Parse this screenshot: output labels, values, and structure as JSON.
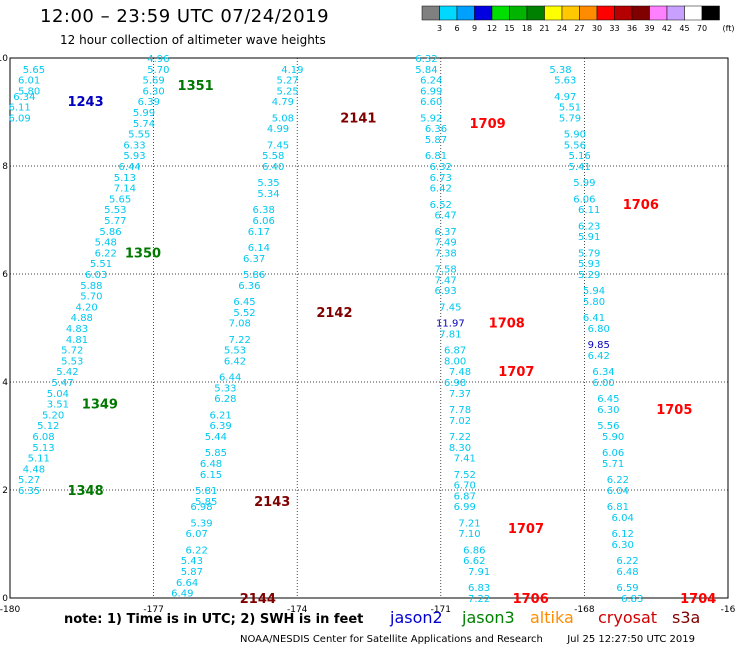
{
  "header": {
    "title": "12:00 – 23:59 UTC 07/24/2019",
    "subtitle": "12 hour collection of altimeter wave heights"
  },
  "colorbar": {
    "unit": "(ft)",
    "labels": [
      "3",
      "6",
      "9",
      "12",
      "15",
      "18",
      "21",
      "24",
      "27",
      "30",
      "33",
      "36",
      "39",
      "42",
      "45",
      "70"
    ],
    "colors": [
      "#808080",
      "#00d8ff",
      "#00a0ff",
      "#0000e0",
      "#00e000",
      "#00b400",
      "#008000",
      "#ffff00",
      "#ffc800",
      "#ff8c00",
      "#ff0000",
      "#b40000",
      "#800000",
      "#ff80ff",
      "#c8a0ff",
      "#ffffff",
      "#000000"
    ]
  },
  "chart_data": {
    "type": "scatter",
    "xlim": [
      -180,
      -165
    ],
    "ylim": [
      0,
      10
    ],
    "x_ticks": [
      "-180",
      "-177",
      "-174",
      "-171",
      "-168",
      "-16"
    ],
    "y_ticks": [
      "0",
      "2",
      "4",
      "6",
      "8",
      "10"
    ],
    "grid": true,
    "tracks": [
      {
        "label": "1243",
        "satellite": "jason2",
        "label_at": [
          -178.8,
          9.2
        ],
        "points": [
          [
            -179.5,
            9.8,
            "5.65"
          ],
          [
            -179.6,
            9.6,
            "6.01"
          ],
          [
            -179.6,
            9.4,
            "5.80"
          ],
          [
            -179.7,
            9.3,
            "6.34"
          ],
          [
            -179.8,
            9.1,
            "6.11"
          ],
          [
            -179.8,
            8.9,
            "6.09"
          ]
        ]
      },
      {
        "label": "1351",
        "satellite": "jason3",
        "label_at": [
          -176.5,
          9.5
        ],
        "points": [
          [
            -176.9,
            10.0,
            "4.96"
          ],
          [
            -176.9,
            9.8,
            "5.70"
          ],
          [
            -177.0,
            9.6,
            "5.69"
          ],
          [
            -177.0,
            9.4,
            "6.30"
          ],
          [
            -177.1,
            9.2,
            "6.39"
          ],
          [
            -177.2,
            9.0,
            "5.99"
          ],
          [
            -177.2,
            8.8,
            "5.74"
          ],
          [
            -177.3,
            8.6,
            "5.55"
          ],
          [
            -177.4,
            8.4,
            "6.33"
          ],
          [
            -177.4,
            8.2,
            "5.93"
          ],
          [
            -177.5,
            8.0,
            "6.44"
          ],
          [
            -177.6,
            7.8,
            "5.13"
          ],
          [
            -177.6,
            7.6,
            "7.14"
          ],
          [
            -177.7,
            7.4,
            "5.65"
          ],
          [
            -177.8,
            7.2,
            "5.53"
          ],
          [
            -177.8,
            7.0,
            "5.77"
          ],
          [
            -177.9,
            6.8,
            "5.86"
          ],
          [
            -178.0,
            6.6,
            "5.48"
          ],
          [
            -178.0,
            6.4,
            "6.22"
          ],
          [
            -178.1,
            6.2,
            "5.51"
          ],
          [
            -178.2,
            6.0,
            "6.03"
          ]
        ]
      },
      {
        "label": "1350",
        "satellite": "jason3",
        "label_at": [
          -177.6,
          6.4
        ],
        "points": [
          [
            -178.3,
            5.8,
            "5.88"
          ],
          [
            -178.3,
            5.6,
            "5.70"
          ],
          [
            -178.4,
            5.4,
            "4.20"
          ],
          [
            -178.5,
            5.2,
            "4.88"
          ],
          [
            -178.6,
            5.0,
            "4.83"
          ],
          [
            -178.6,
            4.8,
            "4.81"
          ],
          [
            -178.7,
            4.6,
            "5.72"
          ],
          [
            -178.7,
            4.4,
            "5.53"
          ],
          [
            -178.8,
            4.2,
            "5.42"
          ],
          [
            -178.9,
            4.0,
            "5.47"
          ]
        ]
      },
      {
        "label": "1349",
        "satellite": "jason3",
        "label_at": [
          -178.5,
          3.6
        ],
        "points": [
          [
            -179.0,
            3.8,
            "5.04"
          ],
          [
            -179.0,
            3.6,
            "3.51"
          ],
          [
            -179.1,
            3.4,
            "5.20"
          ],
          [
            -179.2,
            3.2,
            "5.12"
          ],
          [
            -179.3,
            3.0,
            "6.08"
          ],
          [
            -179.3,
            2.8,
            "5.13"
          ],
          [
            -179.4,
            2.6,
            "5.11"
          ],
          [
            -179.5,
            2.4,
            "4.48"
          ],
          [
            -179.6,
            2.2,
            "5.27"
          ]
        ]
      },
      {
        "label": "1348",
        "satellite": "jason3",
        "label_at": [
          -178.8,
          2.0
        ],
        "points": [
          [
            -179.6,
            2.0,
            "6.35"
          ]
        ]
      },
      {
        "label": "2141",
        "satellite": "cryosat",
        "label_at": [
          -173.1,
          8.9
        ],
        "points": [
          [
            -174.1,
            9.8,
            "4.19"
          ],
          [
            -174.2,
            9.6,
            "5.27"
          ],
          [
            -174.2,
            9.4,
            "5.25"
          ],
          [
            -174.3,
            9.2,
            "4.79"
          ],
          [
            -174.3,
            8.9,
            "5.08"
          ],
          [
            -174.4,
            8.7,
            "4.99"
          ],
          [
            -174.4,
            8.4,
            "7.45"
          ],
          [
            -174.5,
            8.2,
            "5.58"
          ],
          [
            -174.5,
            8.0,
            "6.40"
          ],
          [
            -174.6,
            7.7,
            "5.35"
          ],
          [
            -174.6,
            7.5,
            "5.34"
          ],
          [
            -174.7,
            7.2,
            "6.38"
          ],
          [
            -174.7,
            7.0,
            "6.06"
          ],
          [
            -174.8,
            6.8,
            "6.17"
          ],
          [
            -174.8,
            6.5,
            "6.14"
          ],
          [
            -174.9,
            6.3,
            "6.37"
          ],
          [
            -174.9,
            6.0,
            "5.86"
          ]
        ]
      },
      {
        "label": "2142",
        "satellite": "cryosat",
        "label_at": [
          -173.6,
          5.3
        ],
        "points": [
          [
            -175.0,
            5.8,
            "6.36"
          ],
          [
            -175.1,
            5.5,
            "6.45"
          ],
          [
            -175.1,
            5.3,
            "5.52"
          ],
          [
            -175.2,
            5.1,
            "7.08"
          ],
          [
            -175.2,
            4.8,
            "7.22"
          ],
          [
            -175.3,
            4.6,
            "5.53"
          ],
          [
            -175.3,
            4.4,
            "6.42"
          ],
          [
            -175.4,
            4.1,
            "6.44"
          ],
          [
            -175.5,
            3.9,
            "5.33"
          ],
          [
            -175.5,
            3.7,
            "6.28"
          ],
          [
            -175.6,
            3.4,
            "6.21"
          ],
          [
            -175.6,
            3.2,
            "6.39"
          ],
          [
            -175.7,
            3.0,
            "5.44"
          ],
          [
            -175.7,
            2.7,
            "5.85"
          ],
          [
            -175.8,
            2.5,
            "6.48"
          ],
          [
            -175.8,
            2.3,
            "6.15"
          ],
          [
            -175.9,
            2.0,
            "5.81"
          ]
        ]
      },
      {
        "label": "2143",
        "satellite": "cryosat",
        "label_at": [
          -174.9,
          1.8
        ],
        "points": [
          [
            -175.9,
            1.8,
            "5.85"
          ],
          [
            -176.0,
            1.7,
            "6.98"
          ],
          [
            -176.0,
            1.4,
            "5.39"
          ],
          [
            -176.1,
            1.2,
            "6.07"
          ],
          [
            -176.1,
            0.9,
            "6.22"
          ],
          [
            -176.2,
            0.7,
            "5.43"
          ],
          [
            -176.2,
            0.5,
            "5.87"
          ]
        ]
      },
      {
        "label": "2144",
        "satellite": "cryosat",
        "label_at": [
          -175.2,
          0.0
        ],
        "points": [
          [
            -176.3,
            0.3,
            "6.64"
          ],
          [
            -176.4,
            0.1,
            "6.49"
          ]
        ]
      },
      {
        "label": "1709",
        "satellite": "altika",
        "label_at": [
          -170.4,
          8.8
        ],
        "points": [
          [
            -171.3,
            10.0,
            "6.32"
          ],
          [
            -171.3,
            9.8,
            "5.84"
          ],
          [
            -171.2,
            9.6,
            "6.24"
          ],
          [
            -171.2,
            9.4,
            "6.99"
          ],
          [
            -171.2,
            9.2,
            "6.60"
          ],
          [
            -171.2,
            8.9,
            "5.92"
          ],
          [
            -171.1,
            8.7,
            "6.36"
          ],
          [
            -171.1,
            8.5,
            "5.87"
          ],
          [
            -171.1,
            8.2,
            "6.81"
          ],
          [
            -171.0,
            8.0,
            "6.32"
          ],
          [
            -171.0,
            7.8,
            "6.73"
          ],
          [
            -171.0,
            7.6,
            "6.42"
          ],
          [
            -171.0,
            7.3,
            "6.52"
          ],
          [
            -170.9,
            7.1,
            "6.47"
          ],
          [
            -170.9,
            6.8,
            "6.37"
          ],
          [
            -170.9,
            6.6,
            "7.49"
          ],
          [
            -170.9,
            6.4,
            "7.38"
          ],
          [
            -170.9,
            6.1,
            "7.58"
          ]
        ]
      },
      {
        "label": "1708",
        "satellite": "altika",
        "label_at": [
          -170.0,
          5.1
        ],
        "points": [
          [
            -170.9,
            5.9,
            "7.47"
          ],
          [
            -170.9,
            5.7,
            "6.93"
          ],
          [
            -170.8,
            5.4,
            "7.45"
          ],
          [
            -170.8,
            5.1,
            "11.97"
          ],
          [
            -170.8,
            4.9,
            "7.81"
          ],
          [
            -170.7,
            4.6,
            "6.87"
          ],
          [
            -170.7,
            4.4,
            "8.00"
          ]
        ]
      },
      {
        "label": "1707",
        "satellite": "altika",
        "label_at": [
          -169.8,
          4.2
        ],
        "points": [
          [
            -170.6,
            4.2,
            "7.48"
          ],
          [
            -170.7,
            4.0,
            "6.98"
          ],
          [
            -170.6,
            3.8,
            "7.37"
          ],
          [
            -170.6,
            3.5,
            "7.78"
          ],
          [
            -170.6,
            3.3,
            "7.02"
          ],
          [
            -170.6,
            3.0,
            "7.22"
          ],
          [
            -170.6,
            2.8,
            "8.30"
          ],
          [
            -170.5,
            2.6,
            "7.41"
          ],
          [
            -170.5,
            2.3,
            "7.52"
          ],
          [
            -170.5,
            2.1,
            "6.70"
          ],
          [
            -170.5,
            1.9,
            "6.87"
          ],
          [
            -170.5,
            1.7,
            "6.99"
          ]
        ]
      },
      {
        "label": "1707",
        "satellite": "altika",
        "label_at": [
          -169.6,
          1.3
        ],
        "points": [
          [
            -170.4,
            1.4,
            "7.21"
          ],
          [
            -170.4,
            1.2,
            "7.10"
          ],
          [
            -170.3,
            0.9,
            "6.86"
          ],
          [
            -170.3,
            0.7,
            "6.62"
          ],
          [
            -170.2,
            0.5,
            "7.91"
          ],
          [
            -170.2,
            0.2,
            "6.83"
          ],
          [
            -170.2,
            0.0,
            "7.22"
          ]
        ]
      },
      {
        "label": "1706",
        "satellite": "altika",
        "label_at": [
          -169.5,
          0.0
        ],
        "points": []
      },
      {
        "label": "1706",
        "satellite": "altika",
        "label_at": [
          -167.2,
          7.3
        ],
        "points": [
          [
            -168.5,
            9.8,
            "5.38"
          ],
          [
            -168.4,
            9.6,
            "5.63"
          ],
          [
            -168.4,
            9.3,
            "4.97"
          ],
          [
            -168.3,
            9.1,
            "5.51"
          ],
          [
            -168.3,
            8.9,
            "5.79"
          ],
          [
            -168.2,
            8.6,
            "5.90"
          ],
          [
            -168.2,
            8.4,
            "5.56"
          ],
          [
            -168.1,
            8.2,
            "5.16"
          ],
          [
            -168.1,
            8.0,
            "5.41"
          ],
          [
            -168.0,
            7.7,
            "5.99"
          ],
          [
            -168.0,
            7.4,
            "6.06"
          ],
          [
            -167.9,
            7.2,
            "6.11"
          ],
          [
            -167.9,
            6.9,
            "6.23"
          ],
          [
            -167.9,
            6.7,
            "5.91"
          ],
          [
            -167.9,
            6.4,
            "5.79"
          ],
          [
            -167.9,
            6.2,
            "5.93"
          ],
          [
            -167.9,
            6.0,
            "5.29"
          ],
          [
            -167.8,
            5.7,
            "5.94"
          ],
          [
            -167.8,
            5.5,
            "5.80"
          ],
          [
            -167.8,
            5.2,
            "6.41"
          ],
          [
            -167.7,
            5.0,
            "6.80"
          ],
          [
            -167.7,
            4.7,
            "9.85"
          ],
          [
            -167.7,
            4.5,
            "6.42"
          ],
          [
            -167.6,
            4.2,
            "6.34"
          ],
          [
            -167.6,
            4.0,
            "6.00"
          ]
        ]
      },
      {
        "label": "1705",
        "satellite": "altika",
        "label_at": [
          -166.5,
          3.5
        ],
        "points": [
          [
            -167.5,
            3.7,
            "6.45"
          ],
          [
            -167.5,
            3.5,
            "6.30"
          ],
          [
            -167.5,
            3.2,
            "5.56"
          ],
          [
            -167.4,
            3.0,
            "5.90"
          ],
          [
            -167.4,
            2.7,
            "6.06"
          ],
          [
            -167.4,
            2.5,
            "5.71"
          ],
          [
            -167.3,
            2.2,
            "6.22"
          ],
          [
            -167.3,
            2.0,
            "6.04"
          ],
          [
            -167.3,
            1.7,
            "6.81"
          ],
          [
            -167.2,
            1.5,
            "6.04"
          ],
          [
            -167.2,
            1.2,
            "6.12"
          ],
          [
            -167.2,
            1.0,
            "6.30"
          ],
          [
            -167.1,
            0.7,
            "6.22"
          ],
          [
            -167.1,
            0.5,
            "6.48"
          ],
          [
            -167.1,
            0.2,
            "6.59"
          ],
          [
            -167.0,
            0.0,
            "6.83"
          ]
        ]
      },
      {
        "label": "1704",
        "satellite": "altika",
        "label_at": [
          -166.0,
          0.0
        ],
        "points": []
      }
    ]
  },
  "note": "note: 1) Time is in UTC; 2) SWH is in feet",
  "satellites": [
    {
      "id": "jason2",
      "label": "jason2",
      "color": "#0000d0"
    },
    {
      "id": "jason3",
      "label": "jason3",
      "color": "#008000"
    },
    {
      "id": "altika",
      "label": "altika",
      "color": "#ff8c00"
    },
    {
      "id": "cryosat",
      "label": "cryosat",
      "color": "#d00000"
    },
    {
      "id": "s3a",
      "label": "s3a",
      "color": "#800000"
    }
  ],
  "track_label_colors": {
    "jason2": "#0000c0",
    "jason3": "#007800",
    "cryosat": "#800000",
    "altika": "#ff0000"
  },
  "point_colors": {
    "default": "#00c8f0",
    "high": "#0000c0"
  },
  "credit": "NOAA/NESDIS Center for Satellite Applications and Research",
  "timestamp": "Jul 25 12:27:50 UTC 2019"
}
